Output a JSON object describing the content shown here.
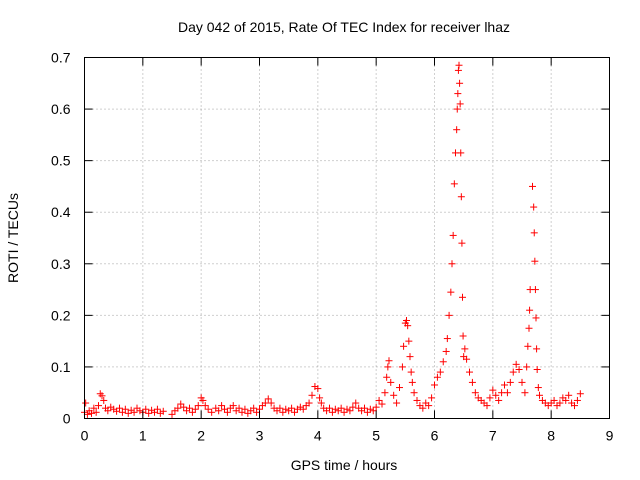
{
  "chart_data": {
    "type": "scatter",
    "title": "Day 042 of 2015, Rate Of TEC Index for receiver lhaz",
    "xlabel": "GPS time / hours",
    "ylabel": "ROTI / TECUs",
    "xlim": [
      0,
      9
    ],
    "ylim": [
      0,
      0.7
    ],
    "xticks": [
      "0",
      "1",
      "2",
      "3",
      "4",
      "5",
      "6",
      "7",
      "8",
      "9"
    ],
    "yticks": [
      "0",
      "0.1",
      "0.2",
      "0.3",
      "0.4",
      "0.5",
      "0.6",
      "0.7"
    ],
    "grid": true,
    "marker": "+",
    "color": "#ff0000",
    "series": [
      {
        "name": "ROTI",
        "points": [
          [
            0.0,
            0.012
          ],
          [
            0.02,
            0.03
          ],
          [
            0.05,
            0.008
          ],
          [
            0.08,
            0.015
          ],
          [
            0.12,
            0.01
          ],
          [
            0.16,
            0.02
          ],
          [
            0.2,
            0.012
          ],
          [
            0.24,
            0.025
          ],
          [
            0.27,
            0.048
          ],
          [
            0.3,
            0.044
          ],
          [
            0.33,
            0.035
          ],
          [
            0.36,
            0.02
          ],
          [
            0.4,
            0.015
          ],
          [
            0.45,
            0.022
          ],
          [
            0.5,
            0.018
          ],
          [
            0.55,
            0.014
          ],
          [
            0.6,
            0.02
          ],
          [
            0.65,
            0.012
          ],
          [
            0.7,
            0.018
          ],
          [
            0.75,
            0.01
          ],
          [
            0.8,
            0.016
          ],
          [
            0.85,
            0.012
          ],
          [
            0.9,
            0.02
          ],
          [
            0.95,
            0.015
          ],
          [
            1.0,
            0.012
          ],
          [
            1.05,
            0.018
          ],
          [
            1.1,
            0.01
          ],
          [
            1.15,
            0.016
          ],
          [
            1.2,
            0.012
          ],
          [
            1.25,
            0.018
          ],
          [
            1.3,
            0.01
          ],
          [
            1.35,
            0.014
          ],
          [
            1.5,
            0.008
          ],
          [
            1.55,
            0.015
          ],
          [
            1.6,
            0.02
          ],
          [
            1.65,
            0.028
          ],
          [
            1.7,
            0.022
          ],
          [
            1.75,
            0.015
          ],
          [
            1.8,
            0.02
          ],
          [
            1.85,
            0.012
          ],
          [
            1.9,
            0.018
          ],
          [
            1.95,
            0.025
          ],
          [
            2.0,
            0.04
          ],
          [
            2.03,
            0.035
          ],
          [
            2.07,
            0.025
          ],
          [
            2.12,
            0.018
          ],
          [
            2.18,
            0.012
          ],
          [
            2.25,
            0.02
          ],
          [
            2.3,
            0.015
          ],
          [
            2.35,
            0.025
          ],
          [
            2.4,
            0.018
          ],
          [
            2.45,
            0.012
          ],
          [
            2.5,
            0.02
          ],
          [
            2.55,
            0.025
          ],
          [
            2.6,
            0.015
          ],
          [
            2.65,
            0.02
          ],
          [
            2.7,
            0.012
          ],
          [
            2.75,
            0.018
          ],
          [
            2.8,
            0.01
          ],
          [
            2.85,
            0.015
          ],
          [
            2.9,
            0.02
          ],
          [
            2.95,
            0.012
          ],
          [
            3.0,
            0.018
          ],
          [
            3.05,
            0.025
          ],
          [
            3.1,
            0.03
          ],
          [
            3.15,
            0.038
          ],
          [
            3.2,
            0.03
          ],
          [
            3.25,
            0.02
          ],
          [
            3.3,
            0.015
          ],
          [
            3.35,
            0.02
          ],
          [
            3.4,
            0.012
          ],
          [
            3.45,
            0.018
          ],
          [
            3.5,
            0.015
          ],
          [
            3.55,
            0.02
          ],
          [
            3.6,
            0.012
          ],
          [
            3.65,
            0.018
          ],
          [
            3.7,
            0.022
          ],
          [
            3.75,
            0.018
          ],
          [
            3.8,
            0.025
          ],
          [
            3.85,
            0.03
          ],
          [
            3.9,
            0.045
          ],
          [
            3.95,
            0.062
          ],
          [
            4.0,
            0.058
          ],
          [
            4.03,
            0.04
          ],
          [
            4.06,
            0.03
          ],
          [
            4.1,
            0.02
          ],
          [
            4.15,
            0.015
          ],
          [
            4.2,
            0.02
          ],
          [
            4.25,
            0.012
          ],
          [
            4.3,
            0.018
          ],
          [
            4.35,
            0.015
          ],
          [
            4.4,
            0.02
          ],
          [
            4.45,
            0.012
          ],
          [
            4.5,
            0.018
          ],
          [
            4.55,
            0.015
          ],
          [
            4.6,
            0.022
          ],
          [
            4.65,
            0.03
          ],
          [
            4.7,
            0.02
          ],
          [
            4.75,
            0.015
          ],
          [
            4.8,
            0.02
          ],
          [
            4.85,
            0.012
          ],
          [
            4.9,
            0.018
          ],
          [
            4.95,
            0.015
          ],
          [
            5.0,
            0.022
          ],
          [
            5.05,
            0.035
          ],
          [
            5.1,
            0.028
          ],
          [
            5.15,
            0.05
          ],
          [
            5.18,
            0.08
          ],
          [
            5.2,
            0.1
          ],
          [
            5.22,
            0.112
          ],
          [
            5.25,
            0.07
          ],
          [
            5.3,
            0.045
          ],
          [
            5.35,
            0.03
          ],
          [
            5.4,
            0.06
          ],
          [
            5.45,
            0.1
          ],
          [
            5.47,
            0.14
          ],
          [
            5.5,
            0.185
          ],
          [
            5.52,
            0.19
          ],
          [
            5.54,
            0.18
          ],
          [
            5.56,
            0.15
          ],
          [
            5.58,
            0.12
          ],
          [
            5.6,
            0.09
          ],
          [
            5.62,
            0.07
          ],
          [
            5.65,
            0.05
          ],
          [
            5.7,
            0.035
          ],
          [
            5.75,
            0.025
          ],
          [
            5.8,
            0.02
          ],
          [
            5.85,
            0.03
          ],
          [
            5.9,
            0.025
          ],
          [
            5.95,
            0.04
          ],
          [
            6.0,
            0.065
          ],
          [
            6.05,
            0.08
          ],
          [
            6.1,
            0.09
          ],
          [
            6.15,
            0.11
          ],
          [
            6.2,
            0.13
          ],
          [
            6.22,
            0.155
          ],
          [
            6.25,
            0.2
          ],
          [
            6.28,
            0.245
          ],
          [
            6.3,
            0.3
          ],
          [
            6.32,
            0.355
          ],
          [
            6.34,
            0.455
          ],
          [
            6.36,
            0.515
          ],
          [
            6.38,
            0.56
          ],
          [
            6.39,
            0.6
          ],
          [
            6.4,
            0.63
          ],
          [
            6.41,
            0.675
          ],
          [
            6.42,
            0.685
          ],
          [
            6.43,
            0.65
          ],
          [
            6.44,
            0.61
          ],
          [
            6.45,
            0.515
          ],
          [
            6.46,
            0.43
          ],
          [
            6.47,
            0.34
          ],
          [
            6.48,
            0.235
          ],
          [
            6.49,
            0.16
          ],
          [
            6.5,
            0.12
          ],
          [
            6.52,
            0.135
          ],
          [
            6.55,
            0.115
          ],
          [
            6.6,
            0.09
          ],
          [
            6.65,
            0.07
          ],
          [
            6.7,
            0.05
          ],
          [
            6.75,
            0.04
          ],
          [
            6.8,
            0.035
          ],
          [
            6.85,
            0.03
          ],
          [
            6.9,
            0.025
          ],
          [
            6.95,
            0.04
          ],
          [
            7.0,
            0.055
          ],
          [
            7.05,
            0.045
          ],
          [
            7.1,
            0.035
          ],
          [
            7.15,
            0.05
          ],
          [
            7.2,
            0.065
          ],
          [
            7.25,
            0.05
          ],
          [
            7.3,
            0.07
          ],
          [
            7.35,
            0.09
          ],
          [
            7.4,
            0.105
          ],
          [
            7.45,
            0.095
          ],
          [
            7.5,
            0.07
          ],
          [
            7.55,
            0.05
          ],
          [
            7.58,
            0.1
          ],
          [
            7.6,
            0.14
          ],
          [
            7.62,
            0.175
          ],
          [
            7.63,
            0.21
          ],
          [
            7.64,
            0.25
          ],
          [
            7.68,
            0.45
          ],
          [
            7.7,
            0.41
          ],
          [
            7.71,
            0.36
          ],
          [
            7.72,
            0.305
          ],
          [
            7.73,
            0.25
          ],
          [
            7.74,
            0.195
          ],
          [
            7.75,
            0.135
          ],
          [
            7.76,
            0.095
          ],
          [
            7.78,
            0.06
          ],
          [
            7.8,
            0.045
          ],
          [
            7.85,
            0.035
          ],
          [
            7.9,
            0.03
          ],
          [
            7.95,
            0.025
          ],
          [
            8.0,
            0.03
          ],
          [
            8.05,
            0.035
          ],
          [
            8.1,
            0.025
          ],
          [
            8.15,
            0.03
          ],
          [
            8.2,
            0.04
          ],
          [
            8.25,
            0.035
          ],
          [
            8.3,
            0.045
          ],
          [
            8.35,
            0.03
          ],
          [
            8.4,
            0.025
          ],
          [
            8.45,
            0.035
          ],
          [
            8.5,
            0.048
          ]
        ]
      }
    ]
  }
}
